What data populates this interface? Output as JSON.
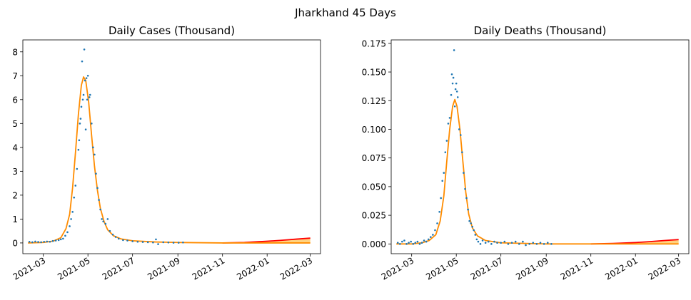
{
  "suptitle": "Jharkhand 45 Days",
  "colors": {
    "points": "#1f77b4",
    "band": "#ffd27f",
    "upper": "#ff0000",
    "fit": "#ff8c00"
  },
  "chart_data": [
    {
      "type": "scatter",
      "title": "Daily Cases (Thousand)",
      "xlabel": "",
      "ylabel": "",
      "x_axis": "date",
      "xlim": [
        "2021-02-01",
        "2022-03-15"
      ],
      "ylim": [
        -0.45,
        8.5
      ],
      "xticks": [
        "2021-03-01",
        "2021-05-01",
        "2021-07-01",
        "2021-09-01",
        "2021-11-01",
        "2022-01-01",
        "2022-03-01"
      ],
      "xtick_labels": [
        "2021-03",
        "2021-05",
        "2021-07",
        "2021-09",
        "2021-11",
        "2022-01",
        "2022-03"
      ],
      "yticks": [
        0,
        1,
        2,
        3,
        4,
        5,
        6,
        7,
        8
      ],
      "ytick_labels": [
        "0",
        "1",
        "2",
        "3",
        "4",
        "5",
        "6",
        "7",
        "8"
      ],
      "grid": false,
      "legend": "none",
      "series": [
        {
          "kind": "scatter",
          "points": [
            [
              "2021-02-10",
              0.05
            ],
            [
              "2021-02-14",
              0.03
            ],
            [
              "2021-02-18",
              0.06
            ],
            [
              "2021-02-22",
              0.04
            ],
            [
              "2021-02-26",
              0.03
            ],
            [
              "2021-03-02",
              0.05
            ],
            [
              "2021-03-06",
              0.06
            ],
            [
              "2021-03-10",
              0.05
            ],
            [
              "2021-03-14",
              0.08
            ],
            [
              "2021-03-18",
              0.1
            ],
            [
              "2021-03-22",
              0.12
            ],
            [
              "2021-03-25",
              0.15
            ],
            [
              "2021-03-28",
              0.18
            ],
            [
              "2021-03-31",
              0.3
            ],
            [
              "2021-04-03",
              0.45
            ],
            [
              "2021-04-06",
              0.7
            ],
            [
              "2021-04-08",
              1.0
            ],
            [
              "2021-04-10",
              1.3
            ],
            [
              "2021-04-12",
              1.9
            ],
            [
              "2021-04-14",
              2.4
            ],
            [
              "2021-04-16",
              3.1
            ],
            [
              "2021-04-18",
              3.9
            ],
            [
              "2021-04-19",
              4.3
            ],
            [
              "2021-04-20",
              5.0
            ],
            [
              "2021-04-21",
              5.2
            ],
            [
              "2021-04-22",
              5.7
            ],
            [
              "2021-04-23",
              7.6
            ],
            [
              "2021-04-24",
              6.0
            ],
            [
              "2021-04-25",
              6.2
            ],
            [
              "2021-04-26",
              8.1
            ],
            [
              "2021-04-27",
              6.8
            ],
            [
              "2021-04-28",
              4.75
            ],
            [
              "2021-04-29",
              6.9
            ],
            [
              "2021-04-30",
              6.0
            ],
            [
              "2021-05-01",
              7.0
            ],
            [
              "2021-05-03",
              6.1
            ],
            [
              "2021-05-04",
              6.2
            ],
            [
              "2021-05-06",
              5.0
            ],
            [
              "2021-05-08",
              4.0
            ],
            [
              "2021-05-10",
              3.7
            ],
            [
              "2021-05-12",
              2.9
            ],
            [
              "2021-05-14",
              2.3
            ],
            [
              "2021-05-16",
              1.8
            ],
            [
              "2021-05-18",
              1.4
            ],
            [
              "2021-05-20",
              1.0
            ],
            [
              "2021-05-22",
              0.9
            ],
            [
              "2021-05-25",
              0.8
            ],
            [
              "2021-05-28",
              1.0
            ],
            [
              "2021-05-31",
              0.5
            ],
            [
              "2021-06-04",
              0.35
            ],
            [
              "2021-06-08",
              0.25
            ],
            [
              "2021-06-12",
              0.18
            ],
            [
              "2021-06-18",
              0.12
            ],
            [
              "2021-06-24",
              0.1
            ],
            [
              "2021-07-01",
              0.07
            ],
            [
              "2021-07-08",
              0.05
            ],
            [
              "2021-07-15",
              0.04
            ],
            [
              "2021-07-22",
              0.03
            ],
            [
              "2021-07-29",
              0.02
            ],
            [
              "2021-08-02",
              0.15
            ],
            [
              "2021-08-05",
              -0.05
            ],
            [
              "2021-08-12",
              0.03
            ],
            [
              "2021-08-19",
              0.02
            ],
            [
              "2021-08-26",
              0.01
            ],
            [
              "2021-09-02",
              0.01
            ],
            [
              "2021-09-08",
              0.02
            ]
          ]
        },
        {
          "kind": "line",
          "role": "fit",
          "points": [
            [
              "2021-02-08",
              0.0
            ],
            [
              "2021-03-01",
              0.02
            ],
            [
              "2021-03-15",
              0.08
            ],
            [
              "2021-03-25",
              0.22
            ],
            [
              "2021-04-01",
              0.6
            ],
            [
              "2021-04-06",
              1.2
            ],
            [
              "2021-04-10",
              2.3
            ],
            [
              "2021-04-14",
              3.8
            ],
            [
              "2021-04-18",
              5.4
            ],
            [
              "2021-04-22",
              6.6
            ],
            [
              "2021-04-25",
              6.95
            ],
            [
              "2021-04-28",
              6.8
            ],
            [
              "2021-05-02",
              5.9
            ],
            [
              "2021-05-06",
              4.5
            ],
            [
              "2021-05-10",
              3.2
            ],
            [
              "2021-05-14",
              2.2
            ],
            [
              "2021-05-18",
              1.45
            ],
            [
              "2021-05-23",
              0.9
            ],
            [
              "2021-05-28",
              0.55
            ],
            [
              "2021-06-05",
              0.3
            ],
            [
              "2021-06-15",
              0.17
            ],
            [
              "2021-07-01",
              0.09
            ],
            [
              "2021-08-01",
              0.04
            ],
            [
              "2021-09-01",
              0.02
            ],
            [
              "2021-11-01",
              0.0
            ],
            [
              "2022-01-01",
              0.0
            ],
            [
              "2022-03-01",
              0.0
            ]
          ]
        },
        {
          "kind": "line",
          "role": "upper",
          "points": [
            [
              "2021-11-01",
              0.0
            ],
            [
              "2021-12-01",
              0.02
            ],
            [
              "2022-01-01",
              0.07
            ],
            [
              "2022-01-20",
              0.11
            ],
            [
              "2022-02-10",
              0.16
            ],
            [
              "2022-03-01",
              0.2
            ]
          ]
        }
      ]
    },
    {
      "type": "scatter",
      "title": "Daily Deaths (Thousand)",
      "xlabel": "",
      "ylabel": "",
      "x_axis": "date",
      "xlim": [
        "2021-02-01",
        "2022-03-15"
      ],
      "ylim": [
        -0.0085,
        0.178
      ],
      "xticks": [
        "2021-03-01",
        "2021-05-01",
        "2021-07-01",
        "2021-09-01",
        "2021-11-01",
        "2022-01-01",
        "2022-03-01"
      ],
      "xtick_labels": [
        "2021-03",
        "2021-05",
        "2021-07",
        "2021-09",
        "2021-11",
        "2022-01",
        "2022-03"
      ],
      "yticks": [
        0.0,
        0.025,
        0.05,
        0.075,
        0.1,
        0.125,
        0.15,
        0.175
      ],
      "ytick_labels": [
        "0.000",
        "0.025",
        "0.050",
        "0.075",
        "0.100",
        "0.125",
        "0.150",
        "0.175"
      ],
      "grid": false,
      "legend": "none",
      "series": [
        {
          "kind": "scatter",
          "points": [
            [
              "2021-02-10",
              0.001
            ],
            [
              "2021-02-13",
              0.0
            ],
            [
              "2021-02-16",
              0.002
            ],
            [
              "2021-02-19",
              0.003
            ],
            [
              "2021-02-22",
              0.0
            ],
            [
              "2021-02-25",
              0.001
            ],
            [
              "2021-02-28",
              0.002
            ],
            [
              "2021-03-03",
              0.0
            ],
            [
              "2021-03-06",
              0.001
            ],
            [
              "2021-03-09",
              0.002
            ],
            [
              "2021-03-12",
              0.0
            ],
            [
              "2021-03-15",
              0.001
            ],
            [
              "2021-03-18",
              0.003
            ],
            [
              "2021-03-21",
              0.002
            ],
            [
              "2021-03-24",
              0.004
            ],
            [
              "2021-03-27",
              0.006
            ],
            [
              "2021-03-30",
              0.008
            ],
            [
              "2021-04-02",
              0.012
            ],
            [
              "2021-04-05",
              0.018
            ],
            [
              "2021-04-08",
              0.028
            ],
            [
              "2021-04-10",
              0.04
            ],
            [
              "2021-04-12",
              0.055
            ],
            [
              "2021-04-14",
              0.062
            ],
            [
              "2021-04-16",
              0.08
            ],
            [
              "2021-04-18",
              0.09
            ],
            [
              "2021-04-20",
              0.105
            ],
            [
              "2021-04-22",
              0.11
            ],
            [
              "2021-04-24",
              0.13
            ],
            [
              "2021-04-25",
              0.148
            ],
            [
              "2021-04-26",
              0.14
            ],
            [
              "2021-04-27",
              0.145
            ],
            [
              "2021-04-28",
              0.169
            ],
            [
              "2021-04-29",
              0.12
            ],
            [
              "2021-04-30",
              0.135
            ],
            [
              "2021-05-01",
              0.14
            ],
            [
              "2021-05-02",
              0.133
            ],
            [
              "2021-05-03",
              0.128
            ],
            [
              "2021-05-05",
              0.1
            ],
            [
              "2021-05-07",
              0.095
            ],
            [
              "2021-05-09",
              0.08
            ],
            [
              "2021-05-11",
              0.062
            ],
            [
              "2021-05-13",
              0.048
            ],
            [
              "2021-05-15",
              0.04
            ],
            [
              "2021-05-17",
              0.03
            ],
            [
              "2021-05-19",
              0.02
            ],
            [
              "2021-05-21",
              0.018
            ],
            [
              "2021-05-23",
              0.015
            ],
            [
              "2021-05-25",
              0.012
            ],
            [
              "2021-05-27",
              0.008
            ],
            [
              "2021-05-29",
              0.004
            ],
            [
              "2021-05-31",
              0.002
            ],
            [
              "2021-06-03",
              0.0
            ],
            [
              "2021-06-06",
              0.003
            ],
            [
              "2021-06-10",
              0.001
            ],
            [
              "2021-06-14",
              0.002
            ],
            [
              "2021-06-18",
              0.0
            ],
            [
              "2021-06-22",
              0.002
            ],
            [
              "2021-06-26",
              0.001
            ],
            [
              "2021-07-01",
              0.001
            ],
            [
              "2021-07-06",
              0.002
            ],
            [
              "2021-07-11",
              0.0
            ],
            [
              "2021-07-16",
              0.001
            ],
            [
              "2021-07-21",
              0.002
            ],
            [
              "2021-07-26",
              0.0
            ],
            [
              "2021-07-31",
              0.002
            ],
            [
              "2021-08-04",
              -0.001
            ],
            [
              "2021-08-09",
              0.0
            ],
            [
              "2021-08-14",
              0.001
            ],
            [
              "2021-08-19",
              0.0
            ],
            [
              "2021-08-24",
              0.001
            ],
            [
              "2021-08-29",
              0.0
            ],
            [
              "2021-09-03",
              0.001
            ],
            [
              "2021-09-08",
              0.0
            ]
          ]
        },
        {
          "kind": "line",
          "role": "fit",
          "points": [
            [
              "2021-02-08",
              0.0
            ],
            [
              "2021-03-01",
              0.0
            ],
            [
              "2021-03-15",
              0.001
            ],
            [
              "2021-03-25",
              0.003
            ],
            [
              "2021-04-03",
              0.008
            ],
            [
              "2021-04-09",
              0.02
            ],
            [
              "2021-04-14",
              0.042
            ],
            [
              "2021-04-18",
              0.072
            ],
            [
              "2021-04-22",
              0.1
            ],
            [
              "2021-04-26",
              0.12
            ],
            [
              "2021-04-29",
              0.126
            ],
            [
              "2021-05-02",
              0.12
            ],
            [
              "2021-05-06",
              0.1
            ],
            [
              "2021-05-10",
              0.072
            ],
            [
              "2021-05-14",
              0.045
            ],
            [
              "2021-05-18",
              0.026
            ],
            [
              "2021-05-23",
              0.014
            ],
            [
              "2021-05-30",
              0.007
            ],
            [
              "2021-06-10",
              0.003
            ],
            [
              "2021-07-01",
              0.001
            ],
            [
              "2021-09-01",
              0.0
            ],
            [
              "2021-11-01",
              0.0
            ],
            [
              "2022-01-01",
              0.0
            ],
            [
              "2022-03-01",
              0.0
            ]
          ]
        },
        {
          "kind": "line",
          "role": "upper",
          "points": [
            [
              "2021-11-01",
              0.0
            ],
            [
              "2021-12-01",
              0.0004
            ],
            [
              "2022-01-01",
              0.0012
            ],
            [
              "2022-01-20",
              0.002
            ],
            [
              "2022-02-10",
              0.003
            ],
            [
              "2022-03-01",
              0.0038
            ]
          ]
        }
      ]
    }
  ]
}
